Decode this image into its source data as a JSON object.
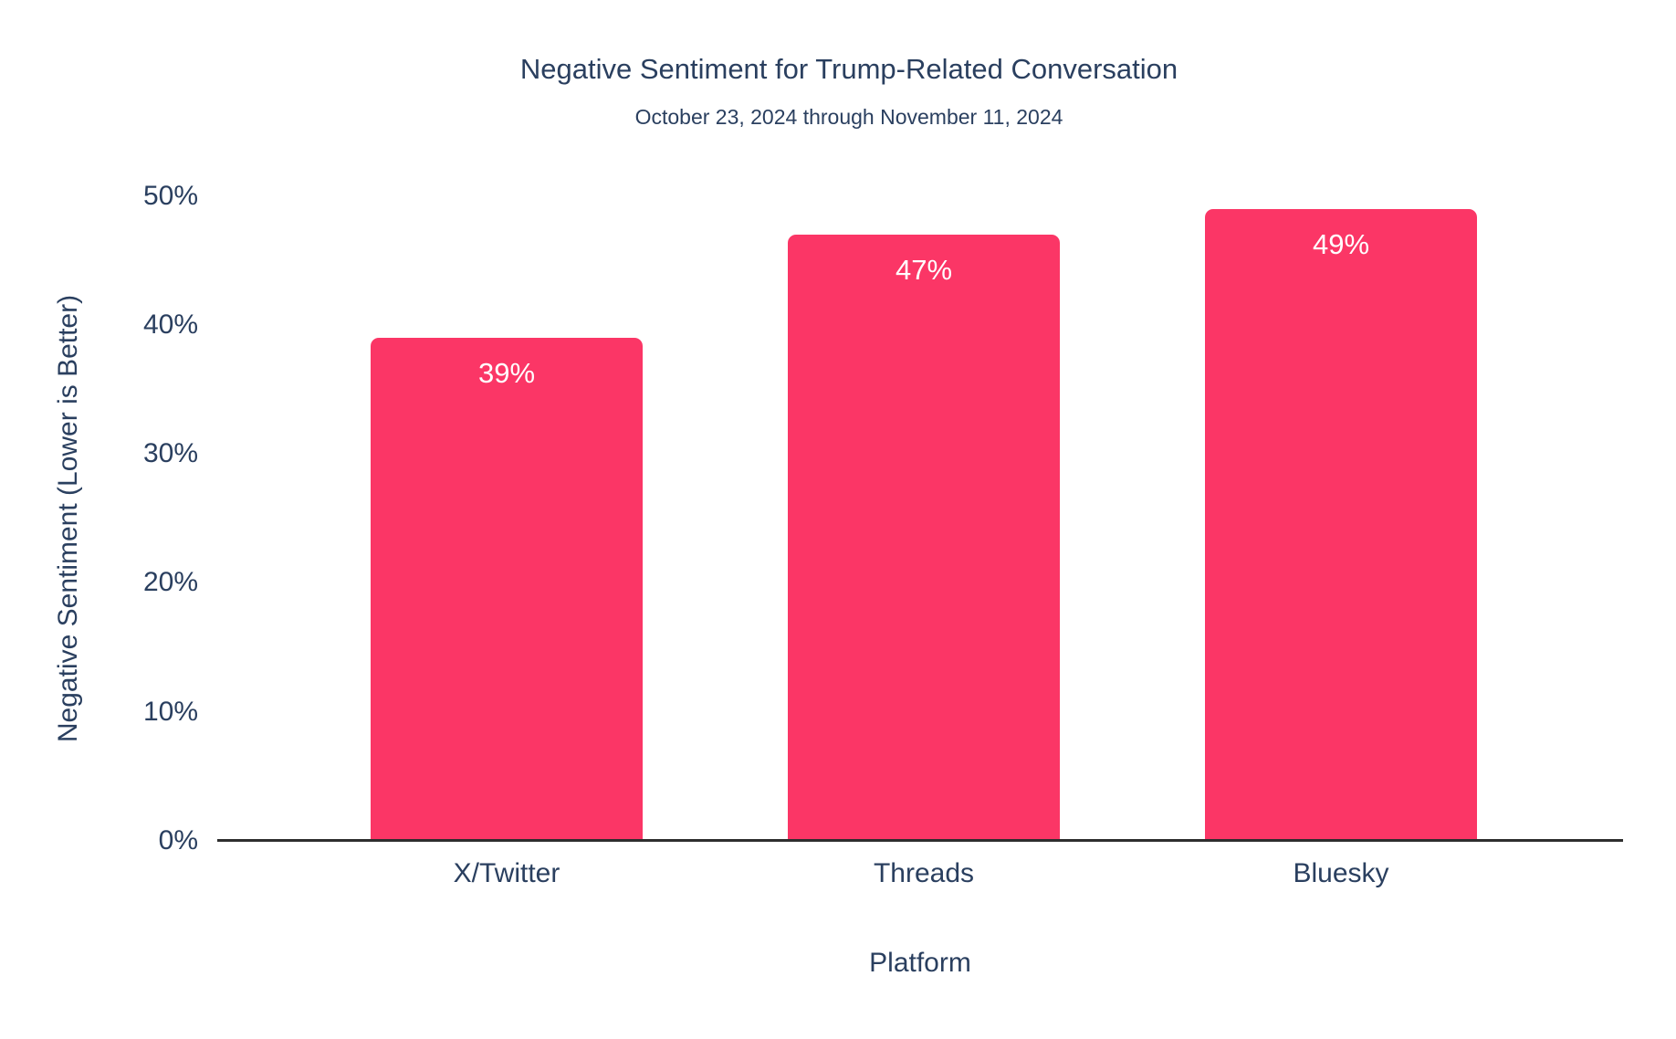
{
  "colors": {
    "bar": "#FB3666",
    "text": "#2A3F5F",
    "axis_line": "#2E2E2E",
    "value_label": "#FFFFFF",
    "background": "#FFFFFF"
  },
  "chart_data": {
    "type": "bar",
    "title": "Negative Sentiment for Trump-Related Conversation",
    "subtitle": "October 23, 2024 through November 11, 2024",
    "categories": [
      "X/Twitter",
      "Threads",
      "Bluesky"
    ],
    "values": [
      39,
      47,
      49
    ],
    "value_labels": [
      "39%",
      "47%",
      "49%"
    ],
    "xlabel": "Platform",
    "ylabel": "Negative Sentiment (Lower is Better)",
    "ylim": [
      0,
      50
    ],
    "yticks": [
      0,
      10,
      20,
      30,
      40,
      50
    ],
    "ytick_labels": [
      "0%",
      "10%",
      "20%",
      "30%",
      "40%",
      "50%"
    ],
    "grid": false,
    "legend": false,
    "bar_color": "#FB3666",
    "pixels_per_unit": 14.12
  }
}
